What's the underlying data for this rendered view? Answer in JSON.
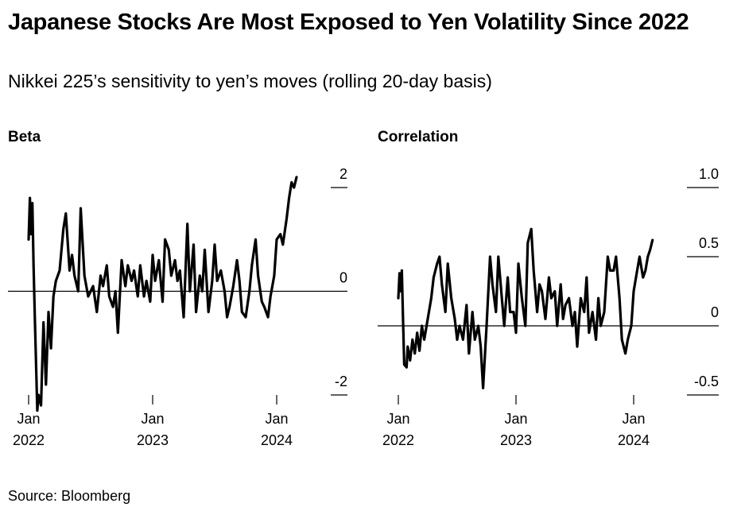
{
  "title": "Japanese Stocks Are Most Exposed to Yen Volatility Since 2022",
  "subtitle": "Nikkei 225’s sensitivity to yen’s moves (rolling 20-day basis)",
  "source": "Source: Bloomberg",
  "colors": {
    "line": "#000000",
    "zero_line": "#000000",
    "text": "#000000"
  },
  "chart_data": [
    {
      "type": "line",
      "title": "Beta",
      "ylim": [
        -2,
        2
      ],
      "y_ticks": [
        "2",
        "0",
        "-2"
      ],
      "y_tick_values": [
        2,
        0,
        -2
      ],
      "x_ticks": [
        {
          "month": "Jan",
          "year": "2022",
          "date": 2022.0
        },
        {
          "month": "Jan",
          "year": "2023",
          "date": 2023.0
        },
        {
          "month": "Jan",
          "year": "2024",
          "date": 2024.0
        }
      ],
      "series": [
        {
          "x": [
            2022.0,
            2022.01,
            2022.02,
            2022.03,
            2022.04,
            2022.05,
            2022.07,
            2022.08,
            2022.1,
            2022.12,
            2022.14,
            2022.16,
            2022.18,
            2022.2,
            2022.22,
            2022.25,
            2022.28,
            2022.3,
            2022.33,
            2022.35,
            2022.37,
            2022.4,
            2022.42,
            2022.45,
            2022.48,
            2022.5,
            2022.52,
            2022.55,
            2022.58,
            2022.6,
            2022.63,
            2022.65,
            2022.68,
            2022.7,
            2022.72,
            2022.75,
            2022.78,
            2022.8,
            2022.83,
            2022.85,
            2022.88,
            2022.9,
            2022.93,
            2022.95,
            2022.98,
            2023.0,
            2023.02,
            2023.05,
            2023.08,
            2023.1,
            2023.13,
            2023.15,
            2023.18,
            2023.2,
            2023.22,
            2023.25,
            2023.28,
            2023.3,
            2023.33,
            2023.35,
            2023.38,
            2023.4,
            2023.42,
            2023.45,
            2023.48,
            2023.5,
            2023.52,
            2023.55,
            2023.58,
            2023.6,
            2023.62,
            2023.65,
            2023.68,
            2023.7,
            2023.72,
            2023.75,
            2023.78,
            2023.8,
            2023.83,
            2023.85,
            2023.88,
            2023.9,
            2023.93,
            2023.95,
            2023.98,
            2024.0,
            2024.03,
            2024.05,
            2024.08,
            2024.1,
            2024.12,
            2024.14,
            2024.16
          ],
          "values": [
            1.0,
            1.8,
            1.1,
            1.7,
            0.5,
            -0.5,
            -2.3,
            -2.0,
            -2.2,
            -0.6,
            -1.8,
            -0.4,
            -1.1,
            -0.1,
            0.2,
            0.4,
            1.2,
            1.5,
            0.4,
            0.7,
            0.3,
            0.0,
            1.6,
            0.3,
            -0.1,
            0.0,
            0.1,
            -0.4,
            0.3,
            0.1,
            0.5,
            -0.1,
            -0.3,
            0.0,
            -0.8,
            0.6,
            0.1,
            0.5,
            0.2,
            0.4,
            -0.1,
            0.5,
            -0.1,
            0.2,
            -0.2,
            0.7,
            0.2,
            0.6,
            -0.2,
            1.0,
            0.8,
            0.3,
            0.6,
            0.2,
            0.4,
            -0.5,
            1.3,
            0.0,
            0.9,
            -0.4,
            0.3,
            0.0,
            0.8,
            -0.4,
            0.2,
            0.9,
            0.2,
            0.4,
            0.0,
            -0.5,
            -0.3,
            0.1,
            0.6,
            0.2,
            -0.4,
            -0.5,
            0.0,
            0.5,
            1.0,
            0.3,
            -0.2,
            -0.3,
            -0.5,
            -0.1,
            0.3,
            1.0,
            1.1,
            0.9,
            1.4,
            1.8,
            2.1,
            2.0,
            2.2
          ]
        }
      ]
    },
    {
      "type": "line",
      "title": "Correlation",
      "ylim": [
        -0.5,
        1.0
      ],
      "y_ticks": [
        "1.0",
        "0.5",
        "0",
        "-0.5"
      ],
      "y_tick_values": [
        1.0,
        0.5,
        0,
        -0.5
      ],
      "x_ticks": [
        {
          "month": "Jan",
          "year": "2022",
          "date": 2022.0
        },
        {
          "month": "Jan",
          "year": "2023",
          "date": 2023.0
        },
        {
          "month": "Jan",
          "year": "2024",
          "date": 2024.0
        }
      ],
      "series": [
        {
          "x": [
            2022.0,
            2022.01,
            2022.02,
            2022.03,
            2022.04,
            2022.05,
            2022.07,
            2022.08,
            2022.1,
            2022.12,
            2022.14,
            2022.16,
            2022.18,
            2022.2,
            2022.22,
            2022.25,
            2022.28,
            2022.3,
            2022.33,
            2022.35,
            2022.37,
            2022.4,
            2022.42,
            2022.45,
            2022.48,
            2022.5,
            2022.52,
            2022.55,
            2022.58,
            2022.6,
            2022.63,
            2022.65,
            2022.68,
            2022.7,
            2022.72,
            2022.75,
            2022.78,
            2022.8,
            2022.83,
            2022.85,
            2022.88,
            2022.9,
            2022.93,
            2022.95,
            2022.98,
            2023.0,
            2023.02,
            2023.05,
            2023.08,
            2023.1,
            2023.13,
            2023.15,
            2023.18,
            2023.2,
            2023.22,
            2023.25,
            2023.28,
            2023.3,
            2023.33,
            2023.35,
            2023.38,
            2023.4,
            2023.42,
            2023.45,
            2023.48,
            2023.5,
            2023.52,
            2023.55,
            2023.58,
            2023.6,
            2023.62,
            2023.65,
            2023.68,
            2023.7,
            2023.72,
            2023.75,
            2023.78,
            2023.8,
            2023.83,
            2023.85,
            2023.88,
            2023.9,
            2023.93,
            2023.95,
            2023.98,
            2024.0,
            2024.03,
            2024.05,
            2024.08,
            2024.1,
            2024.12,
            2024.14,
            2024.16
          ],
          "values": [
            0.2,
            0.38,
            0.25,
            0.4,
            0.05,
            -0.28,
            -0.3,
            -0.15,
            -0.25,
            -0.1,
            -0.2,
            -0.05,
            -0.18,
            0.0,
            -0.1,
            0.05,
            0.2,
            0.35,
            0.45,
            0.5,
            0.3,
            0.1,
            0.45,
            0.2,
            0.05,
            -0.1,
            0.0,
            -0.1,
            0.15,
            -0.2,
            0.1,
            -0.1,
            0.0,
            -0.15,
            -0.45,
            0.0,
            0.5,
            0.3,
            0.1,
            0.5,
            0.2,
            0.0,
            0.35,
            0.1,
            0.1,
            -0.05,
            0.45,
            0.2,
            0.0,
            0.6,
            0.7,
            0.4,
            0.1,
            0.3,
            0.25,
            0.05,
            0.35,
            0.2,
            0.25,
            0.0,
            0.3,
            0.05,
            0.15,
            0.2,
            0.0,
            0.1,
            -0.15,
            0.2,
            0.1,
            0.35,
            -0.05,
            0.1,
            -0.1,
            0.2,
            0.0,
            0.1,
            0.5,
            0.4,
            0.4,
            0.5,
            0.2,
            -0.1,
            -0.2,
            -0.1,
            0.0,
            0.25,
            0.4,
            0.5,
            0.35,
            0.4,
            0.5,
            0.55,
            0.62
          ]
        }
      ]
    }
  ]
}
